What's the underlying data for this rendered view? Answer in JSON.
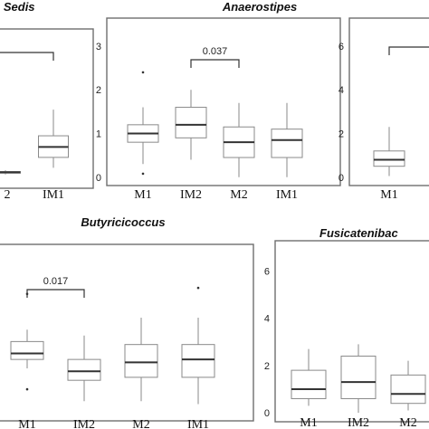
{
  "chart_data": [
    {
      "type": "box",
      "title": "tae Sedis",
      "categories": [
        "2",
        "IM1"
      ],
      "ylim": [
        -0.15,
        3.6
      ],
      "yticks": [],
      "boxes": [
        {
          "whislo": 0.14,
          "q1": 0.17,
          "med": 0.19,
          "q3": 0.21,
          "whishi": 0.24,
          "outliers": []
        },
        {
          "whislo": 0.3,
          "q1": 0.55,
          "med": 0.8,
          "q3": 1.07,
          "whishi": 1.7,
          "outliers": []
        }
      ],
      "comparisons": [
        {
          "from": -1,
          "to": 1,
          "label": ""
        }
      ]
    },
    {
      "type": "box",
      "title": "Anaerostipes",
      "categories": [
        "M1",
        "IM2",
        "M2",
        "IM1"
      ],
      "ylim": [
        -0.15,
        3.6
      ],
      "yticks": [
        0,
        1,
        2,
        3
      ],
      "boxes": [
        {
          "whislo": 0.3,
          "q1": 0.8,
          "med": 1.0,
          "q3": 1.2,
          "whishi": 1.6,
          "outliers": [
            2.4,
            0.08
          ]
        },
        {
          "whislo": 0.4,
          "q1": 0.9,
          "med": 1.2,
          "q3": 1.6,
          "whishi": 2.0,
          "outliers": []
        },
        {
          "whislo": 0.0,
          "q1": 0.45,
          "med": 0.8,
          "q3": 1.15,
          "whishi": 1.7,
          "outliers": []
        },
        {
          "whislo": 0.0,
          "q1": 0.45,
          "med": 0.85,
          "q3": 1.1,
          "whishi": 1.7,
          "outliers": []
        }
      ],
      "comparisons": [
        {
          "from": 1,
          "to": 2,
          "label": "0.037"
        }
      ]
    },
    {
      "type": "box",
      "title": "",
      "categories": [
        "M1"
      ],
      "ylim": [
        -0.3,
        7.2
      ],
      "yticks": [
        0,
        2,
        4,
        6
      ],
      "boxes": [
        {
          "whislo": 0.05,
          "q1": 0.5,
          "med": 0.8,
          "q3": 1.2,
          "whishi": 2.3,
          "outliers": []
        }
      ],
      "comparisons": [
        {
          "from": 0,
          "to": 1,
          "label": ""
        }
      ]
    },
    {
      "type": "box",
      "title": "Butyricicoccus",
      "categories": [
        "M1",
        "IM2",
        "M2",
        "IM1"
      ],
      "ylim": [
        -0.1,
        2.8
      ],
      "yticks": [],
      "boxes": [
        {
          "whislo": 0.75,
          "q1": 0.9,
          "med": 1.0,
          "q3": 1.2,
          "whishi": 1.4,
          "outliers": [
            2.0,
            0.4
          ]
        },
        {
          "whislo": 0.2,
          "q1": 0.55,
          "med": 0.7,
          "q3": 0.9,
          "whishi": 1.3,
          "outliers": []
        },
        {
          "whislo": 0.2,
          "q1": 0.6,
          "med": 0.85,
          "q3": 1.15,
          "whishi": 1.6,
          "outliers": []
        },
        {
          "whislo": 0.15,
          "q1": 0.6,
          "med": 0.9,
          "q3": 1.15,
          "whishi": 1.6,
          "outliers": [
            2.1
          ]
        }
      ],
      "comparisons": [
        {
          "from": 0,
          "to": 1,
          "label": "0.017"
        }
      ]
    },
    {
      "type": "box",
      "title": "Fusicatenibac",
      "categories": [
        "M1",
        "IM2",
        "M2"
      ],
      "ylim": [
        -0.3,
        7.2
      ],
      "yticks": [
        0,
        2,
        4,
        6
      ],
      "boxes": [
        {
          "whislo": 0.3,
          "q1": 0.6,
          "med": 1.0,
          "q3": 1.8,
          "whishi": 2.7,
          "outliers": []
        },
        {
          "whislo": 0.0,
          "q1": 0.6,
          "med": 1.3,
          "q3": 2.4,
          "whishi": 2.9,
          "outliers": []
        },
        {
          "whislo": 0.1,
          "q1": 0.4,
          "med": 0.8,
          "q3": 1.6,
          "whishi": 2.2,
          "outliers": []
        }
      ],
      "comparisons": []
    }
  ]
}
